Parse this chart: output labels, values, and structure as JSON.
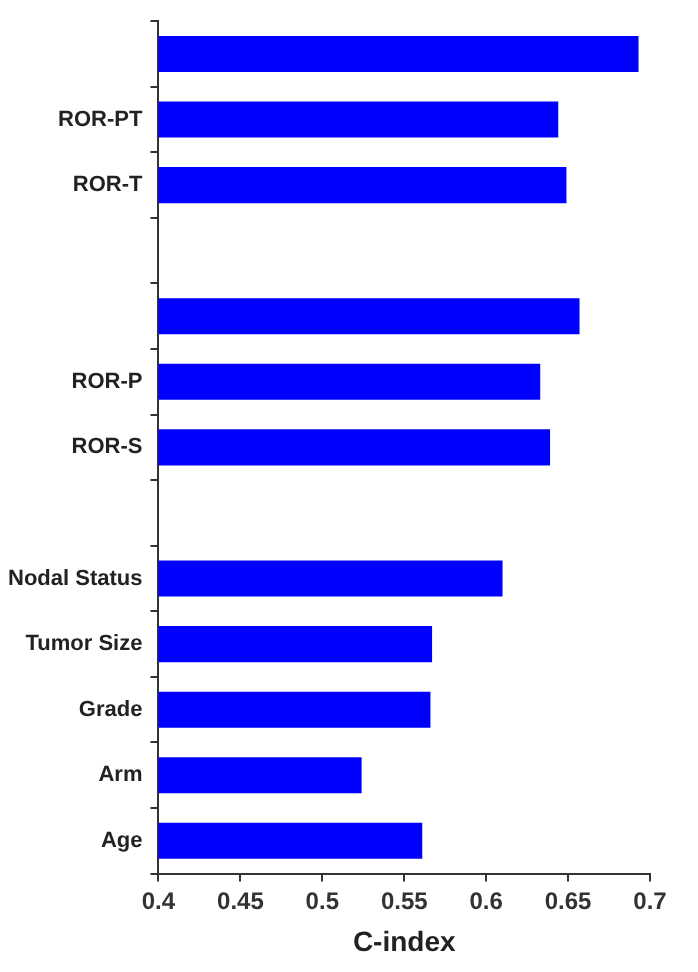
{
  "chart_data": {
    "type": "bar",
    "orientation": "horizontal",
    "xlabel": "C-index",
    "categories": [
      null,
      "ROR-PT",
      "ROR-T",
      null,
      null,
      "ROR-P",
      "ROR-S",
      null,
      "Nodal Status",
      "Tumor Size",
      "Grade",
      "Arm",
      "Age"
    ],
    "values": [
      0.693,
      0.644,
      0.649,
      null,
      0.657,
      0.633,
      0.639,
      null,
      0.61,
      0.567,
      0.566,
      0.524,
      0.561
    ],
    "color": "#0000ff",
    "xlim": [
      0.4,
      0.7
    ],
    "xticks": [
      0.4,
      0.45,
      0.5,
      0.55,
      0.6,
      0.65,
      0.7
    ],
    "grid": false,
    "legend": false
  }
}
